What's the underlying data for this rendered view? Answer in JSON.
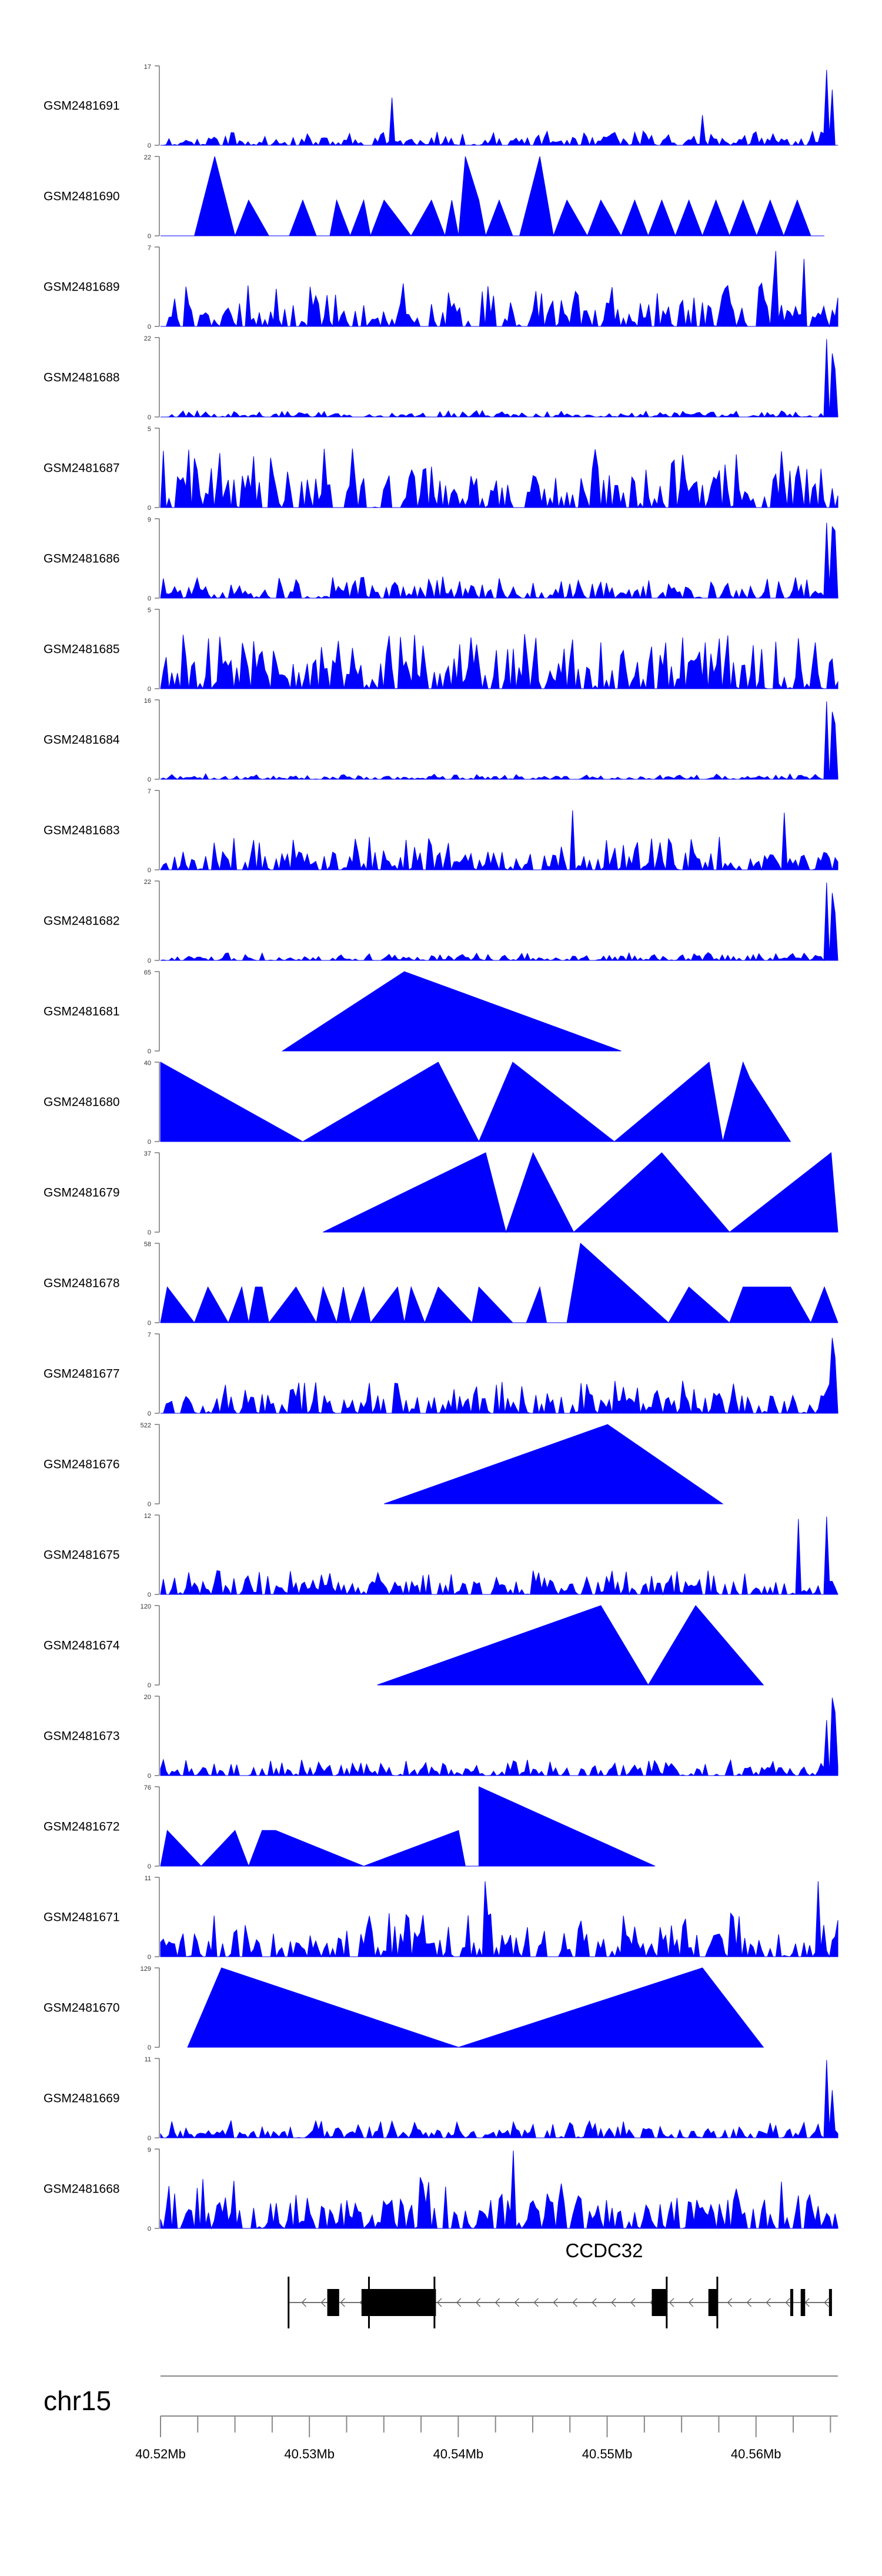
{
  "chart_data": {
    "type": "area",
    "x_range_bp": [
      40520000,
      40565500
    ],
    "color": "#0000ff",
    "tracks": [
      {
        "name": "GSM2481691",
        "ymax": "17",
        "pattern": "noise",
        "seed": 11,
        "base": 0.18,
        "spikes": [
          [
            0.34,
            0.6
          ],
          [
            0.8,
            0.38
          ],
          [
            0.985,
            0.95
          ],
          [
            0.992,
            0.7
          ]
        ]
      },
      {
        "name": "GSM2481690",
        "ymax": "22",
        "pattern": "tri",
        "x": [
          0.0,
          0.05,
          0.08,
          0.11,
          0.13,
          0.16,
          0.19,
          0.21,
          0.23,
          0.25,
          0.26,
          0.28,
          0.3,
          0.31,
          0.33,
          0.37,
          0.4,
          0.42,
          0.43,
          0.44,
          0.45,
          0.47,
          0.48,
          0.5,
          0.52,
          0.53,
          0.56,
          0.58,
          0.6,
          0.63,
          0.65,
          0.68,
          0.7,
          0.72,
          0.74,
          0.76,
          0.78,
          0.8,
          0.82,
          0.84,
          0.86,
          0.88,
          0.9,
          0.92,
          0.94,
          0.96,
          0.98
        ],
        "y": [
          0.0,
          0.0,
          1.0,
          0.0,
          0.45,
          0.0,
          0.0,
          0.45,
          0.0,
          0.0,
          0.45,
          0.0,
          0.45,
          0.0,
          0.45,
          0.0,
          0.45,
          0.0,
          0.45,
          0.0,
          1.0,
          0.45,
          0.0,
          0.45,
          0.0,
          0.0,
          1.0,
          0.0,
          0.45,
          0.0,
          0.45,
          0.0,
          0.45,
          0.0,
          0.45,
          0.0,
          0.45,
          0.0,
          0.45,
          0.0,
          0.45,
          0.0,
          0.45,
          0.0,
          0.45,
          0.0,
          0.0
        ]
      },
      {
        "name": "GSM2481689",
        "ymax": "7",
        "pattern": "noise",
        "seed": 21,
        "base": 0.55,
        "spikes": [
          [
            0.91,
            0.95
          ],
          [
            0.95,
            0.85
          ]
        ]
      },
      {
        "name": "GSM2481688",
        "ymax": "22",
        "pattern": "noise",
        "seed": 31,
        "base": 0.08,
        "spikes": [
          [
            0.985,
            0.98
          ],
          [
            0.99,
            0.8
          ],
          [
            0.995,
            0.6
          ]
        ]
      },
      {
        "name": "GSM2481687",
        "ymax": "5",
        "pattern": "noise",
        "seed": 41,
        "base": 0.75,
        "spikes": []
      },
      {
        "name": "GSM2481686",
        "ymax": "9",
        "pattern": "noise",
        "seed": 51,
        "base": 0.28,
        "spikes": [
          [
            0.985,
            0.95
          ],
          [
            0.99,
            0.9
          ],
          [
            0.995,
            0.85
          ]
        ]
      },
      {
        "name": "GSM2481685",
        "ymax": "5",
        "pattern": "noise",
        "seed": 61,
        "base": 0.7,
        "spikes": []
      },
      {
        "name": "GSM2481684",
        "ymax": "16",
        "pattern": "noise",
        "seed": 71,
        "base": 0.07,
        "spikes": [
          [
            0.985,
            0.98
          ],
          [
            0.99,
            0.85
          ],
          [
            0.995,
            0.7
          ]
        ]
      },
      {
        "name": "GSM2481683",
        "ymax": "7",
        "pattern": "noise",
        "seed": 81,
        "base": 0.42,
        "spikes": [
          [
            0.61,
            0.75
          ],
          [
            0.92,
            0.72
          ]
        ]
      },
      {
        "name": "GSM2481682",
        "ymax": "22",
        "pattern": "noise",
        "seed": 91,
        "base": 0.1,
        "spikes": [
          [
            0.985,
            0.98
          ],
          [
            0.99,
            0.85
          ],
          [
            0.995,
            0.6
          ]
        ]
      },
      {
        "name": "GSM2481681",
        "ymax": "65",
        "pattern": "tri",
        "x": [
          0.18,
          0.36,
          0.68
        ],
        "y": [
          0.0,
          1.0,
          0.0
        ]
      },
      {
        "name": "GSM2481680",
        "ymax": "40",
        "pattern": "tri",
        "x": [
          0.0,
          0.21,
          0.41,
          0.47,
          0.52,
          0.67,
          0.81,
          0.83,
          0.86,
          0.87,
          0.93
        ],
        "y": [
          1.0,
          0.0,
          1.0,
          0.0,
          1.0,
          0.0,
          1.0,
          0.0,
          1.0,
          0.8,
          0.0
        ]
      },
      {
        "name": "GSM2481679",
        "ymax": "37",
        "pattern": "tri",
        "x": [
          0.24,
          0.48,
          0.51,
          0.55,
          0.61,
          0.74,
          0.84,
          0.99,
          1.0
        ],
        "y": [
          0.0,
          1.0,
          0.0,
          1.0,
          0.0,
          1.0,
          0.0,
          1.0,
          0.0
        ]
      },
      {
        "name": "GSM2481678",
        "ymax": "58",
        "pattern": "tri",
        "x": [
          0.0,
          0.01,
          0.05,
          0.07,
          0.1,
          0.12,
          0.13,
          0.14,
          0.15,
          0.16,
          0.2,
          0.23,
          0.24,
          0.26,
          0.27,
          0.28,
          0.3,
          0.31,
          0.35,
          0.36,
          0.37,
          0.39,
          0.41,
          0.46,
          0.47,
          0.52,
          0.54,
          0.56,
          0.57,
          0.6,
          0.6,
          0.62,
          0.75,
          0.78,
          0.84,
          0.86,
          0.92,
          0.93,
          0.96,
          0.98,
          1.0
        ],
        "y": [
          0.0,
          0.45,
          0.0,
          0.45,
          0.0,
          0.45,
          0.0,
          0.45,
          0.45,
          0.0,
          0.45,
          0.0,
          0.45,
          0.0,
          0.45,
          0.0,
          0.45,
          0.0,
          0.45,
          0.0,
          0.45,
          0.0,
          0.45,
          0.0,
          0.45,
          0.0,
          0.0,
          0.45,
          0.0,
          0.0,
          0.0,
          1.0,
          0.0,
          0.45,
          0.0,
          0.45,
          0.45,
          0.45,
          0.0,
          0.45,
          0.0
        ]
      },
      {
        "name": "GSM2481677",
        "ymax": "7",
        "pattern": "noise",
        "seed": 131,
        "base": 0.42,
        "spikes": [
          [
            0.99,
            0.95
          ],
          [
            0.995,
            0.7
          ]
        ]
      },
      {
        "name": "GSM2481676",
        "ymax": "522",
        "pattern": "tri",
        "x": [
          0.33,
          0.66,
          0.83
        ],
        "y": [
          0.0,
          1.0,
          0.0
        ]
      },
      {
        "name": "GSM2481675",
        "ymax": "12",
        "pattern": "noise",
        "seed": 151,
        "base": 0.3,
        "spikes": [
          [
            0.94,
            0.95
          ],
          [
            0.985,
            0.98
          ]
        ]
      },
      {
        "name": "GSM2481674",
        "ymax": "120",
        "pattern": "tri",
        "x": [
          0.32,
          0.65,
          0.72,
          0.79,
          0.89
        ],
        "y": [
          0.0,
          1.0,
          0.0,
          1.0,
          0.0
        ]
      },
      {
        "name": "GSM2481673",
        "ymax": "20",
        "pattern": "noise",
        "seed": 171,
        "base": 0.2,
        "spikes": [
          [
            0.985,
            0.7
          ],
          [
            0.99,
            0.98
          ],
          [
            0.995,
            0.8
          ]
        ]
      },
      {
        "name": "GSM2481672",
        "ymax": "76",
        "pattern": "tri",
        "x": [
          0.0,
          0.01,
          0.06,
          0.11,
          0.13,
          0.15,
          0.17,
          0.3,
          0.44,
          0.45,
          0.47,
          0.47,
          0.73
        ],
        "y": [
          0.0,
          0.45,
          0.0,
          0.45,
          0.0,
          0.45,
          0.45,
          0.0,
          0.45,
          0.0,
          0.0,
          1.0,
          0.0
        ]
      },
      {
        "name": "GSM2481671",
        "ymax": "11",
        "pattern": "noise",
        "seed": 191,
        "base": 0.55,
        "spikes": [
          [
            0.48,
            0.95
          ],
          [
            0.97,
            0.95
          ]
        ]
      },
      {
        "name": "GSM2481670",
        "ymax": "129",
        "pattern": "tri",
        "x": [
          0.04,
          0.09,
          0.44,
          0.8,
          0.89
        ],
        "y": [
          0.0,
          1.0,
          0.0,
          1.0,
          0.0
        ]
      },
      {
        "name": "GSM2481669",
        "ymax": "11",
        "pattern": "noise",
        "seed": 211,
        "base": 0.22,
        "spikes": [
          [
            0.985,
            0.98
          ],
          [
            0.99,
            0.6
          ]
        ]
      },
      {
        "name": "GSM2481668",
        "ymax": "9",
        "pattern": "noise",
        "seed": 221,
        "base": 0.65,
        "spikes": [
          [
            0.52,
            0.98
          ]
        ]
      }
    ],
    "gene": {
      "name": "CCDC32",
      "line_bp": [
        40528600,
        40565100
      ],
      "exons_bp": [
        [
          40531200,
          40532000
        ],
        [
          40533500,
          40538500
        ],
        [
          40553000,
          40554000
        ],
        [
          40556800,
          40557400
        ],
        [
          40562300,
          40562500
        ],
        [
          40563000,
          40563300
        ],
        [
          40564900,
          40565100
        ]
      ],
      "boundary_marks_bp": [
        40528600,
        40534000,
        40538400,
        40554000,
        40557400
      ]
    },
    "chromosome": "chr15",
    "axis_ticks_labeled": [
      "40.52Mb",
      "40.53Mb",
      "40.54Mb",
      "40.55Mb",
      "40.56Mb"
    ]
  }
}
